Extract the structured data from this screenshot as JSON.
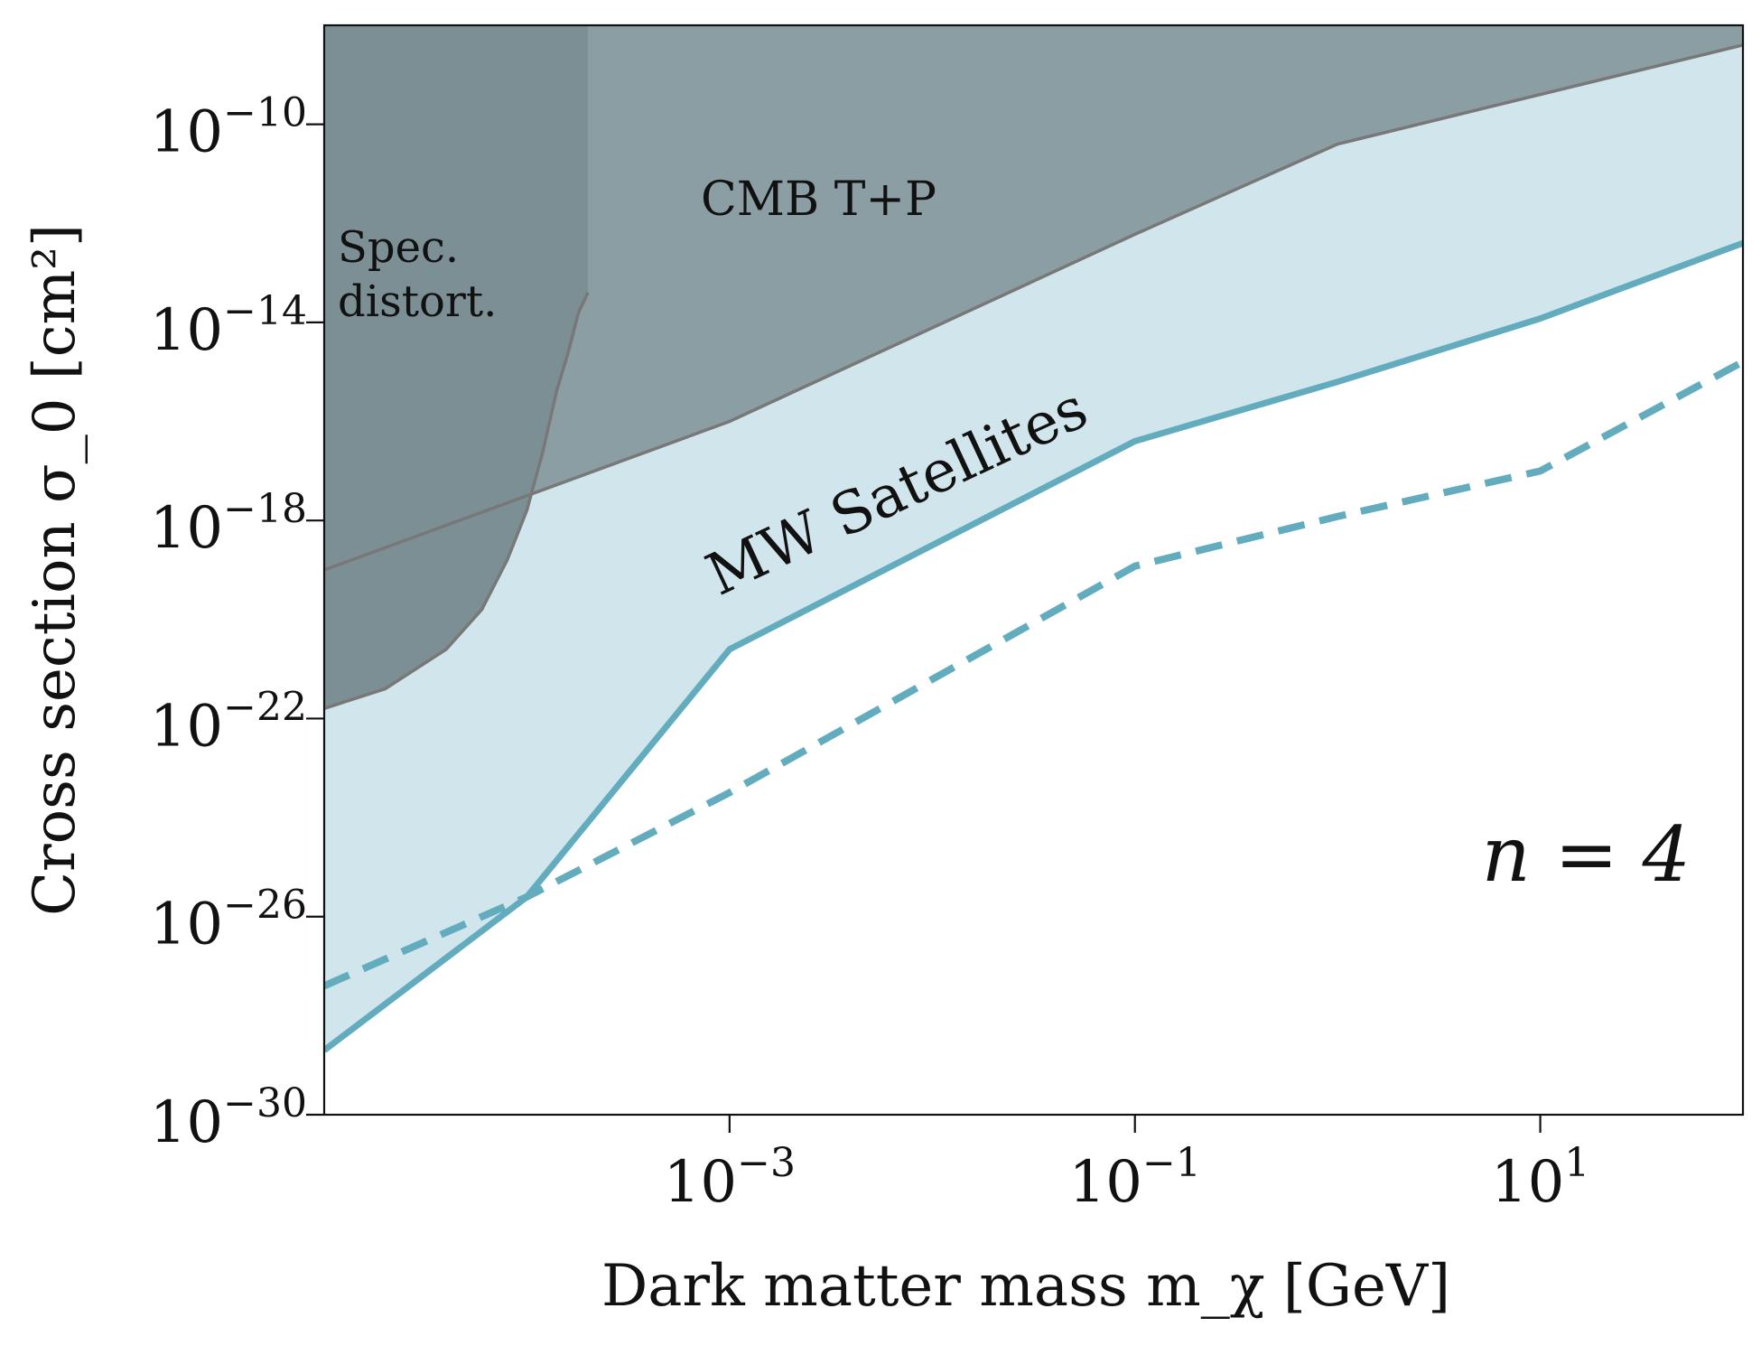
{
  "chart_data": {
    "type": "line",
    "xlabel": "Dark matter mass m_χ [GeV]",
    "ylabel": "Cross section σ_0 [cm²]",
    "x_scale": "log",
    "y_scale": "log",
    "xlim": [
      1e-05,
      100.0
    ],
    "ylim": [
      1e-30,
      1e-08
    ],
    "x_ticks": [
      {
        "value": 0.001,
        "base": "10",
        "exp": "−3"
      },
      {
        "value": 0.1,
        "base": "10",
        "exp": "−1"
      },
      {
        "value": 10,
        "base": "10",
        "exp": "1"
      }
    ],
    "y_ticks": [
      {
        "value": 1e-10,
        "base": "10",
        "exp": "−10"
      },
      {
        "value": 1e-14,
        "base": "10",
        "exp": "−14"
      },
      {
        "value": 1e-18,
        "base": "10",
        "exp": "−18"
      },
      {
        "value": 1e-22,
        "base": "10",
        "exp": "−22"
      },
      {
        "value": 1e-26,
        "base": "10",
        "exp": "−26"
      },
      {
        "value": 1e-30,
        "base": "10",
        "exp": "−30"
      }
    ],
    "annotation": "n = 4",
    "regions": [
      {
        "label": "Spec. distort.",
        "label_lines": [
          "Spec.",
          "distort."
        ],
        "color": "#7b8f95",
        "boundary": {
          "x": [
            1e-05,
            2e-05,
            4e-05,
            6e-05,
            8e-05,
            0.0001,
            0.00012,
            0.00014,
            0.00016,
            0.00018,
            0.0002
          ],
          "y": [
            1.6e-22,
            4e-22,
            2.5e-21,
            1.6e-20,
            1.6e-19,
            1.6e-18,
            2.5e-17,
            4e-16,
            2.5e-15,
            1.6e-14,
            4e-14
          ]
        }
      },
      {
        "label": "CMB T+P",
        "color": "#8a9ea4",
        "boundary": {
          "x": [
            1e-05,
            0.001,
            0.1,
            1,
            100
          ],
          "y": [
            1e-19,
            1e-16,
            6e-13,
            4e-11,
            4e-09
          ]
        }
      }
    ],
    "series": [
      {
        "name": "MW Satellites",
        "style": "solid",
        "color": "#62acbe",
        "fill": "#d0e5ec",
        "x": [
          1e-05,
          0.0001,
          0.001,
          0.1,
          1,
          10,
          100
        ],
        "y": [
          2e-29,
          2.5e-26,
          2.5e-21,
          4e-17,
          6.3e-16,
          1.2e-14,
          4e-13
        ]
      },
      {
        "style": "dashed",
        "color": "#62acbe",
        "x": [
          1e-05,
          0.0001,
          0.001,
          0.1,
          1,
          10,
          100
        ],
        "y": [
          4e-28,
          2.5e-26,
          3.2e-24,
          1.2e-19,
          1.2e-18,
          1e-17,
          1.6e-15
        ]
      }
    ]
  }
}
